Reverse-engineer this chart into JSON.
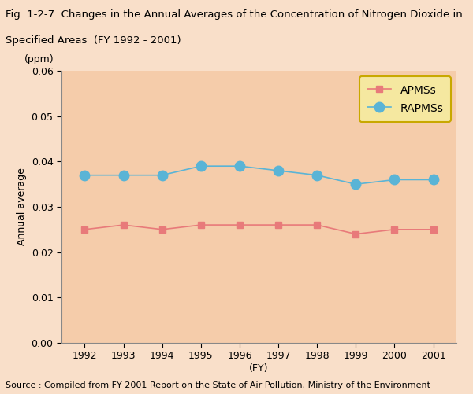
{
  "title_line1": "Fig. 1-2-7  Changes in the Annual Averages of the Concentration of Nitrogen Dioxide in",
  "title_line2": "Specified Areas  (FY 1992 - 2001)",
  "footnote": "Source : Compiled from FY 2001 Report on the State of Air Pollution, Ministry of the Environment",
  "xlabel": "(FY)",
  "ylabel": "Annual average",
  "ylabel_unit": "(ppm)",
  "years": [
    1992,
    1993,
    1994,
    1995,
    1996,
    1997,
    1998,
    1999,
    2000,
    2001
  ],
  "APMSs": [
    0.025,
    0.026,
    0.025,
    0.026,
    0.026,
    0.026,
    0.026,
    0.024,
    0.025,
    0.025
  ],
  "RAPMSs": [
    0.037,
    0.037,
    0.037,
    0.039,
    0.039,
    0.038,
    0.037,
    0.035,
    0.036,
    0.036
  ],
  "apmss_color": "#e87a7a",
  "rapmss_color": "#5ab4d6",
  "bg_color": "#f9dfc9",
  "title_bg_color": "#ffffff",
  "plot_bg_color": "#f5ccaa",
  "ylim": [
    0.0,
    0.06
  ],
  "yticks": [
    0.0,
    0.01,
    0.02,
    0.03,
    0.04,
    0.05,
    0.06
  ],
  "legend_box_color": "#f5e8a0",
  "legend_edge_color": "#c8a800",
  "title_fontsize": 9.5,
  "axis_fontsize": 9,
  "tick_fontsize": 9,
  "footnote_fontsize": 8
}
